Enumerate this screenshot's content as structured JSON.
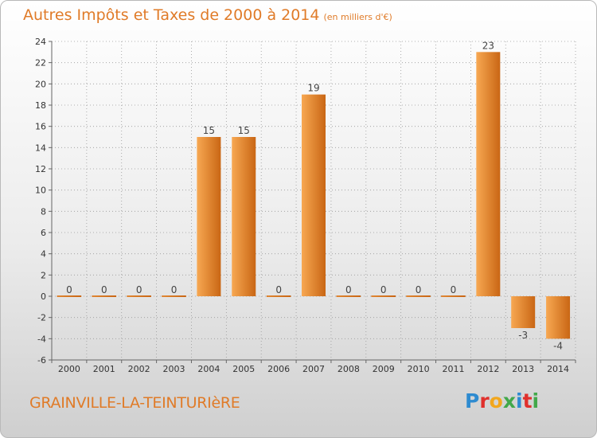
{
  "header": {
    "title": "Autres Impôts et Taxes de 2000 à 2014",
    "subtitle": "(en milliers d'€)"
  },
  "footer": {
    "commune": "GRAINVILLE-LA-TEINTURIèRE",
    "logo_letters": [
      "P",
      "r",
      "o",
      "x",
      "i",
      "t",
      "i"
    ],
    "logo_colors": [
      "#2e8bd0",
      "#e0302c",
      "#f2a71e",
      "#42a84a",
      "#2e8bd0",
      "#e0302c",
      "#42a84a"
    ]
  },
  "colors": {
    "bar_light": "#f7a852",
    "bar_dark": "#c96614",
    "title": "#e07b28",
    "grid": "#999999"
  },
  "chart_data": {
    "type": "bar",
    "categories": [
      "2000",
      "2001",
      "2002",
      "2003",
      "2004",
      "2005",
      "2006",
      "2007",
      "2008",
      "2009",
      "2010",
      "2011",
      "2012",
      "2013",
      "2014"
    ],
    "values": [
      0,
      0,
      0,
      0,
      15,
      15,
      0,
      19,
      0,
      0,
      0,
      0,
      23,
      -3,
      -4
    ],
    "ylim": [
      -6,
      24
    ],
    "yticks": [
      -6,
      -4,
      -2,
      0,
      2,
      4,
      6,
      8,
      10,
      12,
      14,
      16,
      18,
      20,
      22,
      24
    ],
    "grid": true,
    "legend": "none"
  }
}
